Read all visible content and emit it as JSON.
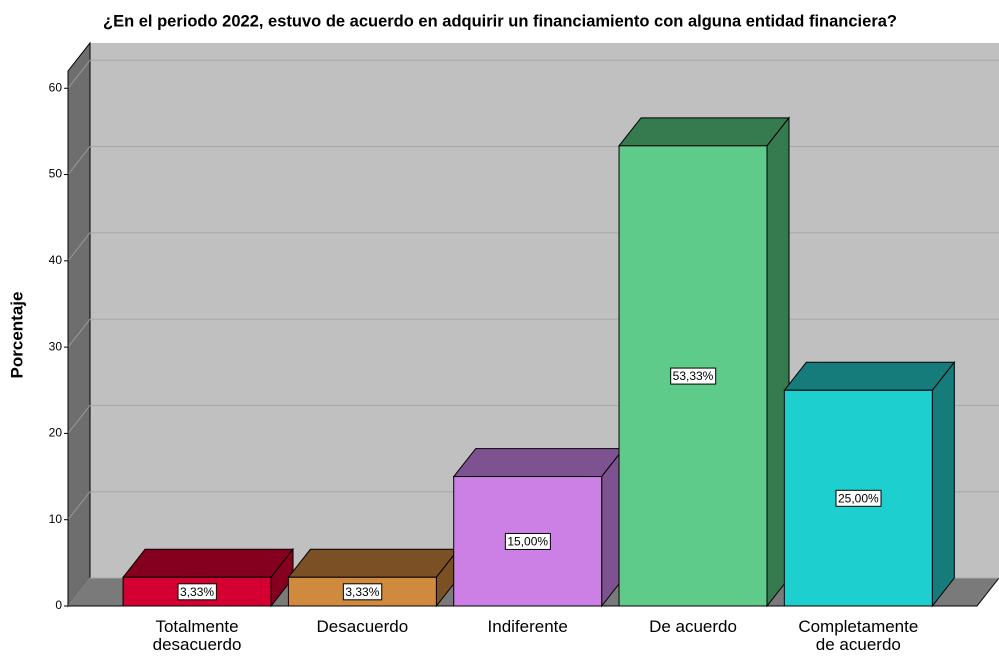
{
  "chart_data": {
    "type": "bar3d",
    "title": "¿En el periodo 2022, estuvo de acuerdo en adquirir un financiamiento con alguna entidad financiera?",
    "y_label": "Porcentaje",
    "categories": [
      "Totalmente\ndesacuerdo",
      "Desacuerdo",
      "Indiferente",
      "De acuerdo",
      "Completamente\nde acuerdo"
    ],
    "values": [
      3.33,
      3.33,
      15,
      53.33,
      25
    ],
    "value_labels": [
      "3,33%",
      "3,33%",
      "15,00%",
      "53,33%",
      "25,00%"
    ],
    "colors": [
      "#d50032",
      "#cf8a3e",
      "#cc80e6",
      "#5ecb8a",
      "#1ecfcf"
    ],
    "side_colors": [
      "#85001f",
      "#7b5024",
      "#7e5290",
      "#367a50",
      "#167b7b"
    ],
    "ylim": [
      0,
      62
    ],
    "yticks": [
      0,
      10,
      20,
      30,
      40,
      50,
      60
    ],
    "grid": true
  }
}
